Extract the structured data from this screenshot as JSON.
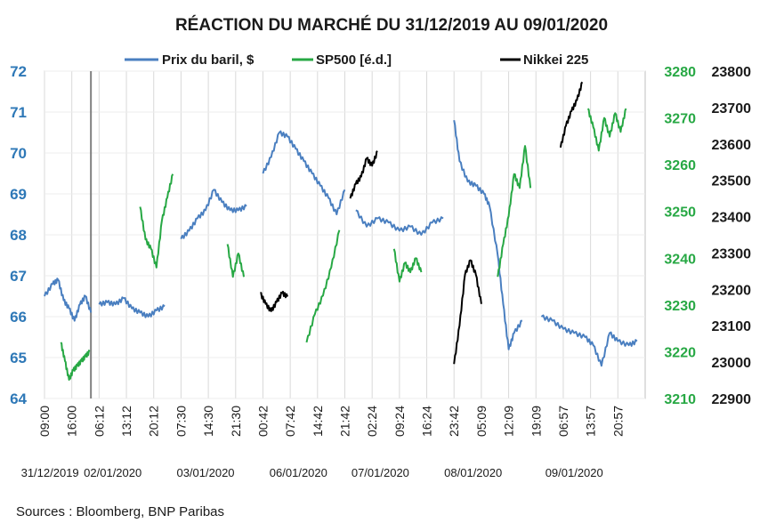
{
  "chart_data": {
    "type": "line",
    "title": "RÉACTION DU MARCHÉ DU 31/12/2019 AU 09/01/2020",
    "source": "Sources : Bloomberg, BNP Paribas",
    "legend": [
      {
        "label": "Prix du baril, $",
        "color": "#4a7fc0"
      },
      {
        "label": "SP500 [é.d.]",
        "color": "#27a844"
      },
      {
        "label": "Nikkei 225",
        "color": "#000000"
      }
    ],
    "colors": {
      "oil": "#4a7fc0",
      "sp500": "#27a844",
      "nikkei": "#000000",
      "tick_left": "#2e78b7",
      "tick_green": "#27a844"
    },
    "y_left": {
      "ticks": [
        "72",
        "71",
        "70",
        "69",
        "68",
        "67",
        "66",
        "65",
        "64"
      ],
      "min": 64,
      "max": 72
    },
    "y_green": {
      "ticks": [
        "3280",
        "3270",
        "3260",
        "3250",
        "3240",
        "3230",
        "3220",
        "3210"
      ],
      "min": 3210,
      "max": 3280
    },
    "y_right": {
      "ticks": [
        "23800",
        "23700",
        "23600",
        "23500",
        "23400",
        "23300",
        "23200",
        "23100",
        "23000",
        "22900"
      ],
      "min": 22900,
      "max": 23800
    },
    "x_ticks": [
      "09:00",
      "16:00",
      "06:12",
      "13:12",
      "20:12",
      "07:30",
      "14:30",
      "21:30",
      "00:42",
      "07:42",
      "14:42",
      "21:42",
      "02:24",
      "09:24",
      "16:24",
      "23:42",
      "05:09",
      "12:09",
      "19:09",
      "06:57",
      "13:57",
      "20:57"
    ],
    "date_labels": [
      "31/12/2019",
      "02/01/2020",
      "03/01/2020",
      "06/01/2020",
      "07/01/2020",
      "08/01/2020",
      "09/01/2020"
    ],
    "x_range": [
      0,
      22
    ],
    "grid": true,
    "marker_line_x": 1.7,
    "series": [
      {
        "name": "Prix du baril, $",
        "axis": "left",
        "segments": [
          [
            [
              0,
              66.5
            ],
            [
              0.3,
              66.8
            ],
            [
              0.5,
              66.9
            ],
            [
              0.7,
              66.4
            ],
            [
              0.9,
              66.2
            ],
            [
              1.1,
              65.9
            ],
            [
              1.3,
              66.3
            ],
            [
              1.5,
              66.5
            ],
            [
              1.7,
              66.1
            ]
          ],
          [
            [
              2,
              66.3
            ],
            [
              2.3,
              66.35
            ],
            [
              2.6,
              66.3
            ],
            [
              2.9,
              66.45
            ],
            [
              3.2,
              66.2
            ],
            [
              3.5,
              66.1
            ],
            [
              3.8,
              66.0
            ],
            [
              4.1,
              66.15
            ],
            [
              4.4,
              66.25
            ]
          ],
          [
            [
              5,
              67.9
            ],
            [
              5.3,
              68.1
            ],
            [
              5.6,
              68.4
            ],
            [
              5.9,
              68.6
            ],
            [
              6.2,
              69.1
            ],
            [
              6.5,
              68.8
            ],
            [
              6.8,
              68.6
            ],
            [
              7.1,
              68.6
            ],
            [
              7.4,
              68.7
            ]
          ],
          [
            [
              8,
              69.5
            ],
            [
              8.3,
              69.9
            ],
            [
              8.6,
              70.5
            ],
            [
              8.9,
              70.4
            ],
            [
              9.2,
              70.1
            ],
            [
              9.5,
              69.8
            ],
            [
              9.8,
              69.5
            ],
            [
              10.1,
              69.2
            ],
            [
              10.4,
              68.9
            ],
            [
              10.7,
              68.5
            ],
            [
              11,
              69.1
            ]
          ],
          [
            [
              11.4,
              68.6
            ],
            [
              11.8,
              68.2
            ],
            [
              12.2,
              68.4
            ],
            [
              12.6,
              68.3
            ],
            [
              13,
              68.1
            ],
            [
              13.4,
              68.2
            ],
            [
              13.8,
              68.0
            ],
            [
              14.2,
              68.3
            ],
            [
              14.6,
              68.4
            ]
          ],
          [
            [
              15,
              70.8
            ],
            [
              15.2,
              69.8
            ],
            [
              15.5,
              69.3
            ],
            [
              15.8,
              69.2
            ],
            [
              16.1,
              69.0
            ],
            [
              16.3,
              68.7
            ],
            [
              16.6,
              67.5
            ],
            [
              16.8,
              66.3
            ],
            [
              17,
              65.2
            ],
            [
              17.2,
              65.6
            ],
            [
              17.5,
              65.9
            ]
          ],
          [
            [
              18.2,
              66.0
            ],
            [
              18.6,
              65.9
            ],
            [
              19,
              65.7
            ],
            [
              19.4,
              65.6
            ],
            [
              19.8,
              65.5
            ],
            [
              20.1,
              65.3
            ],
            [
              20.4,
              64.8
            ],
            [
              20.7,
              65.6
            ],
            [
              21,
              65.4
            ],
            [
              21.4,
              65.3
            ],
            [
              21.7,
              65.4
            ]
          ]
        ]
      },
      {
        "name": "SP500 [é.d.]",
        "axis": "green",
        "segments": [
          [
            [
              0.6,
              3222
            ],
            [
              0.75,
              3218
            ],
            [
              0.9,
              3214
            ],
            [
              1.05,
              3216
            ],
            [
              1.2,
              3217
            ],
            [
              1.35,
              3218
            ],
            [
              1.5,
              3219
            ],
            [
              1.65,
              3220
            ]
          ],
          [
            [
              3.5,
              3251
            ],
            [
              3.7,
              3244
            ],
            [
              3.9,
              3242
            ],
            [
              4.1,
              3238
            ],
            [
              4.3,
              3248
            ],
            [
              4.5,
              3253
            ],
            [
              4.7,
              3258
            ]
          ],
          [
            [
              6.7,
              3243
            ],
            [
              6.9,
              3236
            ],
            [
              7.1,
              3241
            ],
            [
              7.3,
              3236
            ]
          ],
          [
            [
              9.6,
              3222
            ],
            [
              9.9,
              3228
            ],
            [
              10.2,
              3232
            ],
            [
              10.5,
              3238
            ],
            [
              10.8,
              3246
            ]
          ],
          [
            [
              12.8,
              3242
            ],
            [
              13.0,
              3235
            ],
            [
              13.2,
              3239
            ],
            [
              13.4,
              3237
            ],
            [
              13.6,
              3240
            ],
            [
              13.8,
              3237
            ]
          ],
          [
            [
              16.6,
              3236
            ],
            [
              16.8,
              3243
            ],
            [
              17.0,
              3249
            ],
            [
              17.2,
              3258
            ],
            [
              17.4,
              3255
            ],
            [
              17.6,
              3264
            ],
            [
              17.8,
              3255
            ]
          ],
          [
            [
              19.9,
              3272
            ],
            [
              20.1,
              3268
            ],
            [
              20.3,
              3263
            ],
            [
              20.5,
              3270
            ],
            [
              20.7,
              3266
            ],
            [
              20.9,
              3271
            ],
            [
              21.1,
              3267
            ],
            [
              21.3,
              3272
            ]
          ]
        ]
      },
      {
        "name": "Nikkei 225",
        "axis": "right",
        "segments": [
          [
            [
              7.9,
              23190
            ],
            [
              8.1,
              23160
            ],
            [
              8.3,
              23140
            ],
            [
              8.5,
              23165
            ],
            [
              8.7,
              23190
            ],
            [
              8.9,
              23180
            ]
          ],
          [
            [
              11.2,
              23450
            ],
            [
              11.4,
              23490
            ],
            [
              11.6,
              23510
            ],
            [
              11.8,
              23560
            ],
            [
              12.0,
              23540
            ],
            [
              12.2,
              23580
            ]
          ],
          [
            [
              15.0,
              22995
            ],
            [
              15.2,
              23100
            ],
            [
              15.4,
              23240
            ],
            [
              15.6,
              23280
            ],
            [
              15.8,
              23240
            ],
            [
              16.0,
              23160
            ]
          ],
          [
            [
              18.9,
              23590
            ],
            [
              19.1,
              23650
            ],
            [
              19.3,
              23690
            ],
            [
              19.5,
              23720
            ],
            [
              19.7,
              23770
            ]
          ]
        ]
      }
    ]
  }
}
